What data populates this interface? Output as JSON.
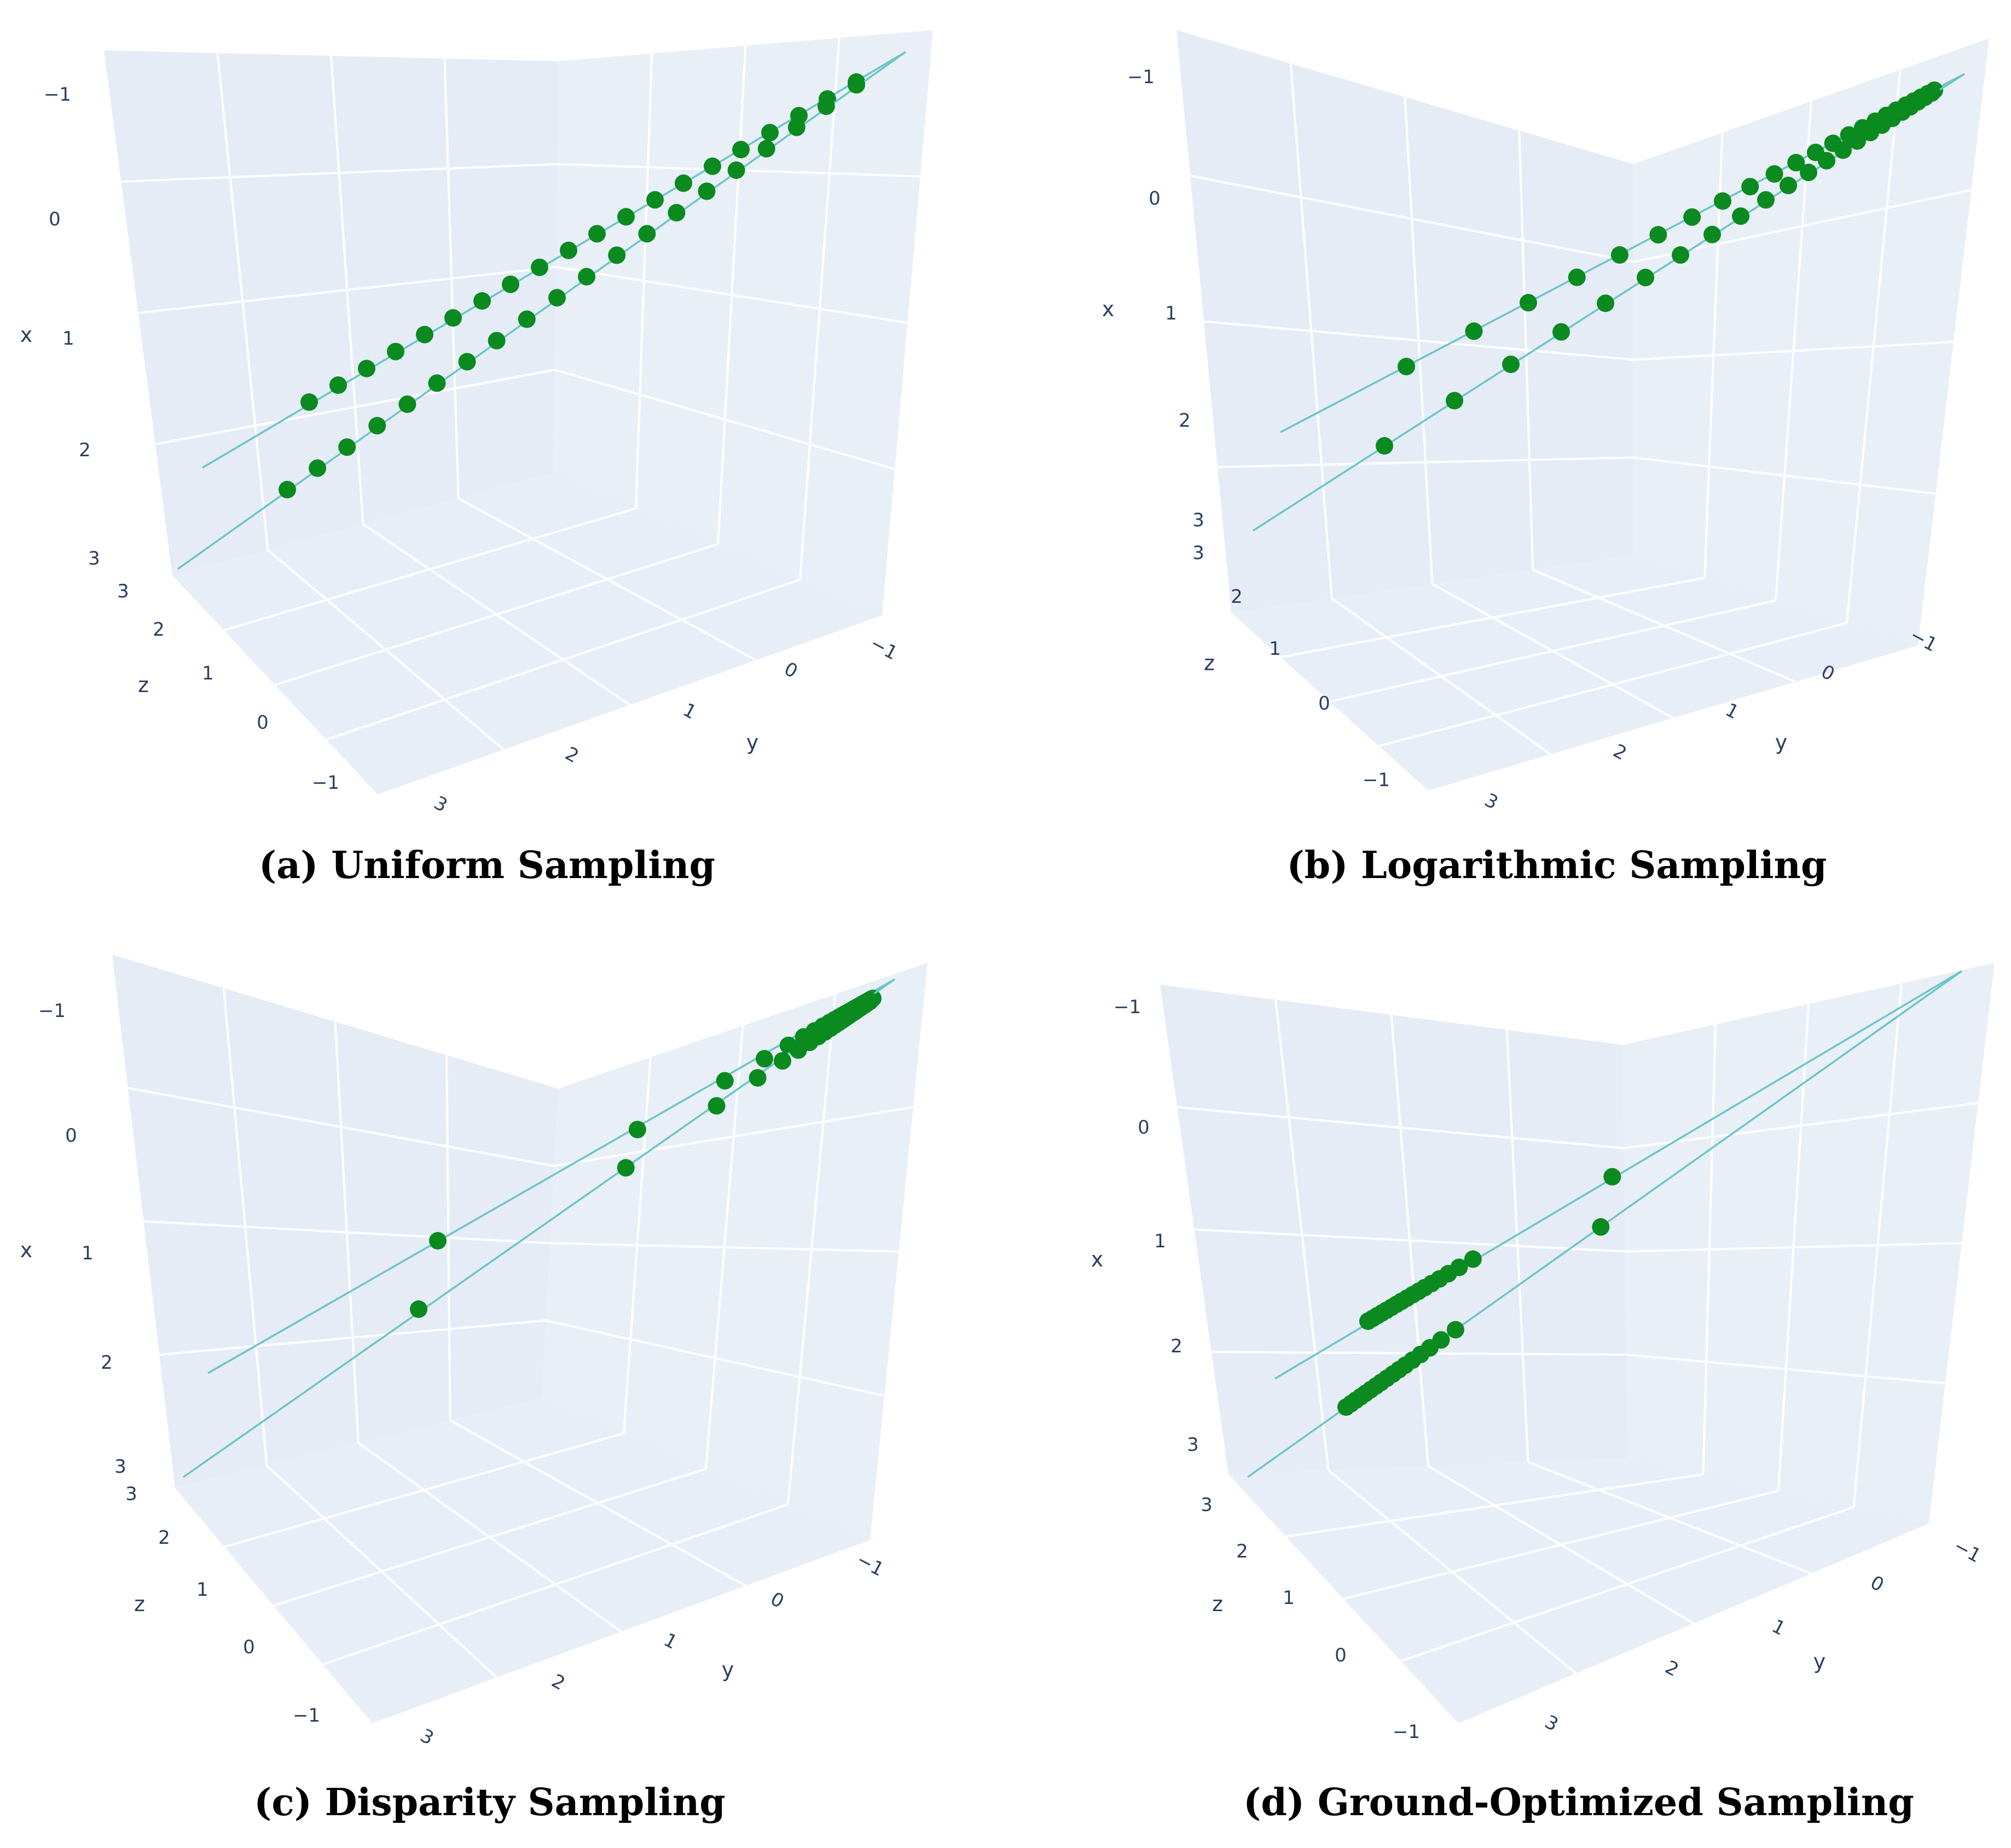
{
  "figure": {
    "point_color": "#0a8a1f",
    "line_color": "#6cc4c8",
    "pane_color": "#e5ecf6",
    "grid_color": "#ffffff",
    "tick_color": "#2a3f5f"
  },
  "chart_data": [
    {
      "type": "scatter",
      "title": "(a) Uniform Sampling",
      "axes": {
        "x": {
          "label": "x",
          "ticks": [
            "−1",
            "0",
            "1",
            "2",
            "3"
          ]
        },
        "y": {
          "label": "y",
          "ticks": [
            "3",
            "2",
            "1",
            "0",
            "−1"
          ]
        },
        "z": {
          "label": "z",
          "ticks": [
            "3",
            "2",
            "1",
            "0",
            "−1"
          ]
        }
      },
      "series": [
        {
          "name": "upper ray",
          "t": [
            0.0,
            0.053,
            0.105,
            0.158,
            0.211,
            0.263,
            0.316,
            0.368,
            0.421,
            0.474,
            0.526,
            0.579,
            0.632,
            0.684,
            0.737,
            0.789,
            0.842,
            0.895,
            0.947,
            1.0
          ]
        },
        {
          "name": "lower ray",
          "t": [
            0.0,
            0.053,
            0.105,
            0.158,
            0.211,
            0.263,
            0.316,
            0.368,
            0.421,
            0.474,
            0.526,
            0.579,
            0.632,
            0.684,
            0.737,
            0.789,
            0.842,
            0.895,
            0.947,
            1.0
          ]
        }
      ]
    },
    {
      "type": "scatter",
      "title": "(b) Logarithmic Sampling",
      "axes": {
        "x": {
          "label": "x",
          "ticks": [
            "−1",
            "0",
            "1",
            "2",
            "3"
          ]
        },
        "y": {
          "label": "y",
          "ticks": [
            "3",
            "2",
            "1",
            "0",
            "−1"
          ]
        },
        "z": {
          "label": "z",
          "ticks": [
            "3",
            "2",
            "1",
            "0",
            "−1"
          ]
        }
      },
      "series": [
        {
          "name": "upper ray",
          "t": [
            0.0,
            0.128,
            0.231,
            0.323,
            0.404,
            0.477,
            0.541,
            0.599,
            0.651,
            0.697,
            0.738,
            0.775,
            0.808,
            0.838,
            0.864,
            0.888,
            0.909,
            0.928,
            0.946,
            0.961,
            0.975,
            0.988,
            1.0
          ]
        },
        {
          "name": "lower ray",
          "t": [
            0.0,
            0.128,
            0.231,
            0.323,
            0.404,
            0.477,
            0.541,
            0.599,
            0.651,
            0.697,
            0.738,
            0.775,
            0.808,
            0.838,
            0.864,
            0.888,
            0.909,
            0.928,
            0.946,
            0.961,
            0.975,
            0.988,
            1.0
          ]
        }
      ]
    },
    {
      "type": "scatter",
      "title": "(c) Disparity Sampling",
      "axes": {
        "x": {
          "label": "x",
          "ticks": [
            "−1",
            "0",
            "1",
            "2",
            "3"
          ]
        },
        "y": {
          "label": "y",
          "ticks": [
            "3",
            "2",
            "1",
            "0",
            "−1"
          ]
        },
        "z": {
          "label": "z",
          "ticks": [
            "3",
            "2",
            "1",
            "0",
            "−1"
          ]
        }
      },
      "series": [
        {
          "name": "upper ray",
          "t": [
            0.0,
            0.459,
            0.66,
            0.751,
            0.806,
            0.841,
            0.866,
            0.885,
            0.9,
            0.912,
            0.922,
            0.93,
            0.937,
            0.943,
            0.949,
            0.953,
            0.958,
            0.962,
            0.965,
            0.968,
            0.971,
            0.974,
            0.976,
            0.978,
            0.981,
            0.983,
            0.985,
            0.987,
            0.989,
            0.991,
            0.993,
            0.995,
            0.997,
            1.0
          ]
        },
        {
          "name": "lower ray",
          "t": [
            0.0,
            0.459,
            0.66,
            0.751,
            0.806,
            0.841,
            0.866,
            0.885,
            0.9,
            0.912,
            0.922,
            0.93,
            0.937,
            0.943,
            0.949,
            0.953,
            0.958,
            0.962,
            0.965,
            0.968,
            0.971,
            0.974,
            0.976,
            0.978,
            0.981,
            0.983,
            0.985,
            0.987,
            0.989,
            0.991,
            0.993,
            0.995,
            0.997,
            1.0
          ]
        }
      ]
    },
    {
      "type": "scatter",
      "title": "(d) Ground-Optimized  Sampling",
      "axes": {
        "x": {
          "label": "x",
          "ticks": [
            "−1",
            "0",
            "1",
            "2",
            "3"
          ]
        },
        "y": {
          "label": "y",
          "ticks": [
            "3",
            "2",
            "1",
            "0",
            "−1"
          ]
        },
        "z": {
          "label": "z",
          "ticks": [
            "3",
            "2",
            "1",
            "0",
            "−1"
          ]
        }
      },
      "series": [
        {
          "name": "upper ray",
          "t": [
            0.0,
            0.012,
            0.024,
            0.036,
            0.048,
            0.061,
            0.074,
            0.087,
            0.101,
            0.116,
            0.131,
            0.147,
            0.165,
            0.185,
            0.208,
            0.236,
            0.272,
            0.633
          ]
        },
        {
          "name": "lower ray",
          "t": [
            0.0,
            0.012,
            0.024,
            0.036,
            0.048,
            0.061,
            0.074,
            0.087,
            0.101,
            0.116,
            0.131,
            0.147,
            0.165,
            0.185,
            0.208,
            0.236,
            0.272,
            0.633
          ]
        }
      ]
    }
  ]
}
